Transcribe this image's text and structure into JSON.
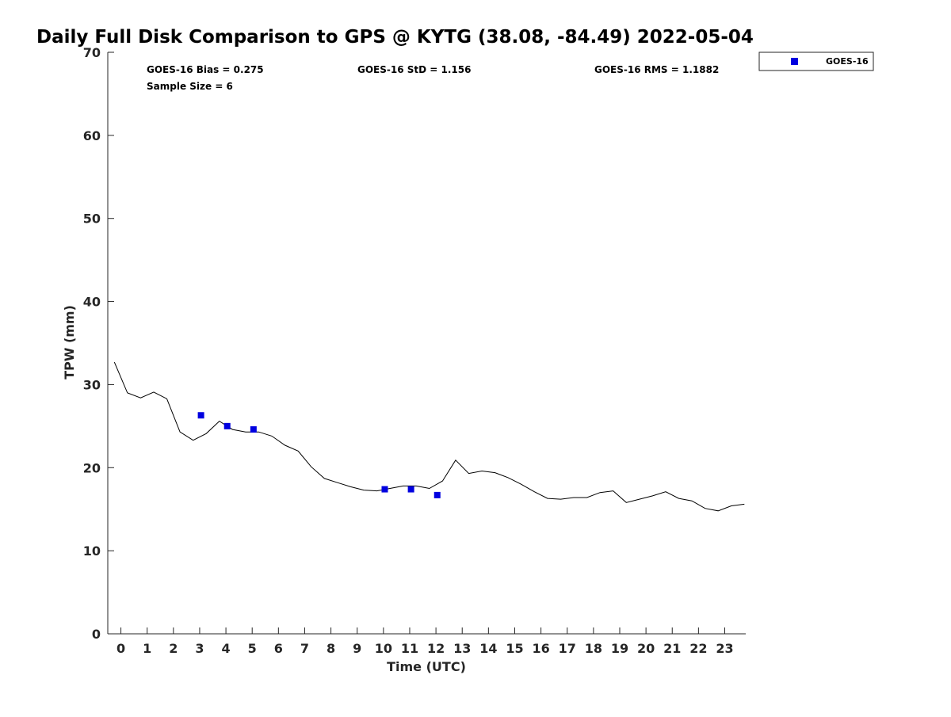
{
  "chart_data": {
    "type": "scatter",
    "title": "Daily Full Disk Comparison to GPS @ KYTG (38.08, -84.49) 2022-05-04",
    "xlabel": "Time (UTC)",
    "ylabel": "TPW (mm)",
    "xlim": [
      -0.5,
      23.8
    ],
    "ylim": [
      0,
      70
    ],
    "x_ticks": [
      0,
      1,
      2,
      3,
      4,
      5,
      6,
      7,
      8,
      9,
      10,
      11,
      12,
      13,
      14,
      15,
      16,
      17,
      18,
      19,
      20,
      21,
      22,
      23
    ],
    "y_ticks": [
      0,
      10,
      20,
      30,
      40,
      50,
      60,
      70
    ],
    "grid": false,
    "legend_position": "top-right",
    "stats": [
      "GOES-16 Bias = 0.275",
      "GOES-16 StD = 1.156",
      "GOES-16 RMS = 1.1882",
      "Sample Size = 6"
    ],
    "series": [
      {
        "kind": "line",
        "color": "#000000",
        "x": [
          -0.25,
          0.25,
          0.75,
          1.25,
          1.75,
          2.25,
          2.75,
          3.25,
          3.75,
          4.25,
          4.75,
          5.25,
          5.75,
          6.25,
          6.75,
          7.25,
          7.75,
          8.25,
          8.75,
          9.25,
          9.75,
          10.25,
          10.75,
          11.25,
          11.75,
          12.25,
          12.75,
          13.25,
          13.75,
          14.25,
          14.75,
          15.25,
          15.75,
          16.25,
          16.75,
          17.25,
          17.75,
          18.25,
          18.75,
          19.25,
          19.75,
          20.25,
          20.75,
          21.25,
          21.75,
          22.25,
          22.75,
          23.25,
          23.75
        ],
        "y": [
          32.7,
          29.0,
          28.4,
          29.1,
          28.3,
          24.3,
          23.3,
          24.1,
          25.6,
          24.6,
          24.3,
          24.3,
          23.8,
          22.7,
          22.0,
          20.1,
          18.7,
          18.2,
          17.7,
          17.3,
          17.2,
          17.5,
          17.8,
          17.8,
          17.5,
          18.4,
          20.9,
          19.3,
          19.6,
          19.4,
          18.8,
          18.0,
          17.1,
          16.3,
          16.2,
          16.4,
          16.4,
          17.0,
          17.2,
          15.8,
          16.2,
          16.6,
          17.1,
          16.3,
          16.0,
          15.1,
          14.8,
          15.4,
          15.6
        ]
      },
      {
        "kind": "scatter",
        "name": "GOES-16",
        "color": "#0000e0",
        "x": [
          3.05,
          4.05,
          5.05,
          10.05,
          11.05,
          12.05
        ],
        "y": [
          26.3,
          25.0,
          24.6,
          17.4,
          17.4,
          16.7
        ]
      }
    ]
  }
}
